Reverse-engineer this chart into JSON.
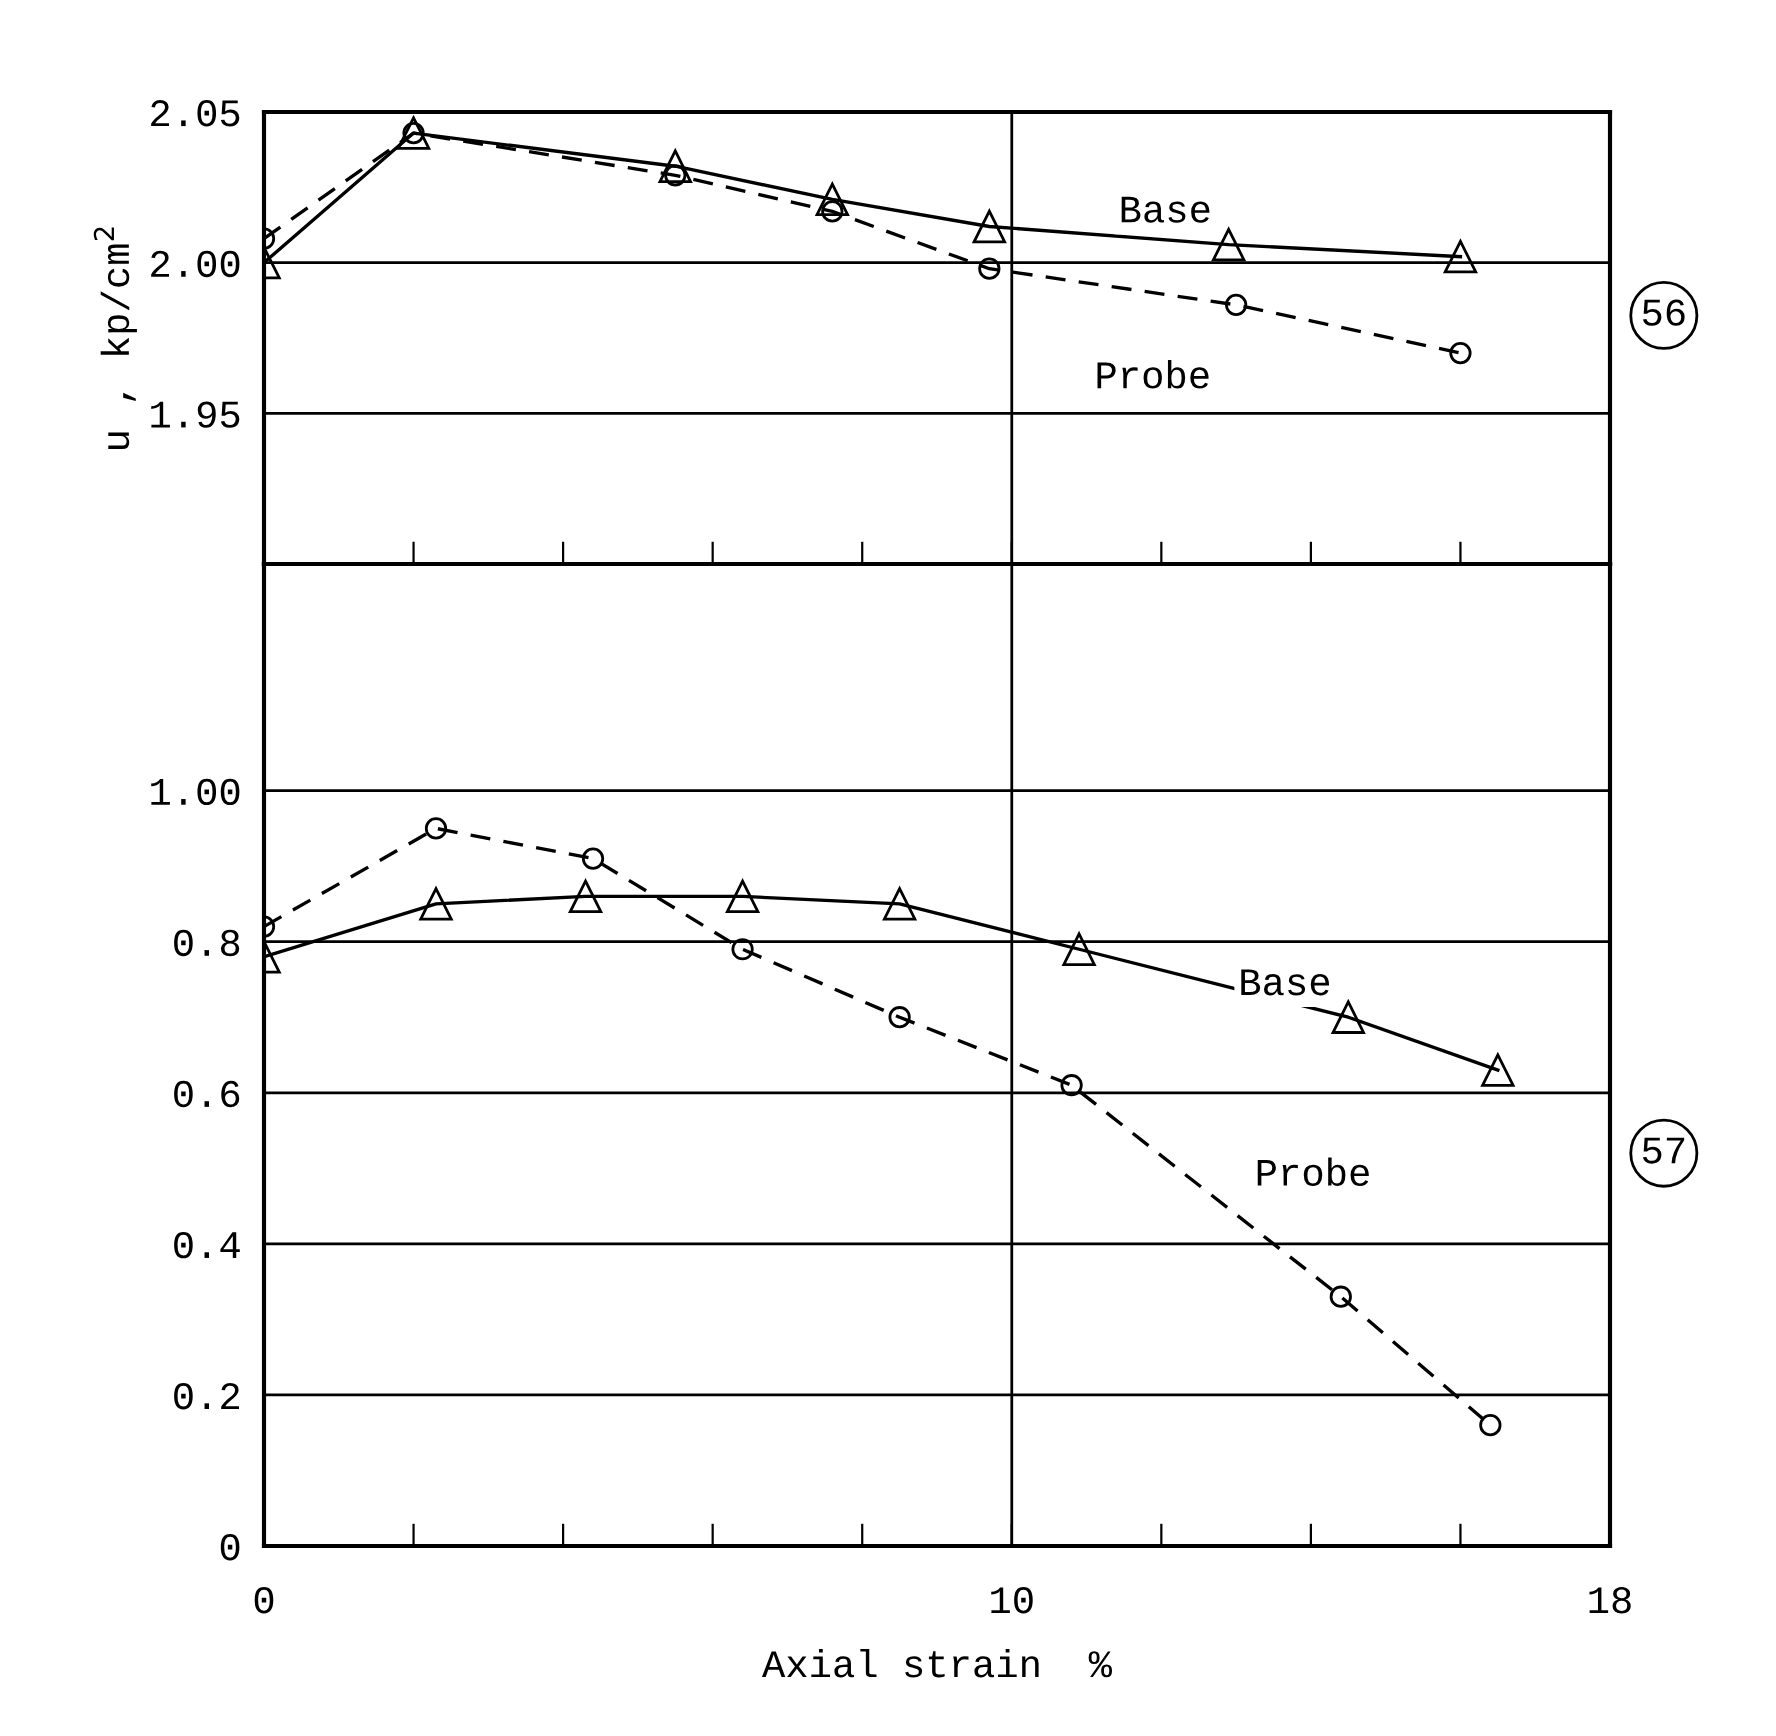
{
  "chart_data": [
    {
      "type": "line",
      "ylabel": "u , kp/cm$^{2}$",
      "xlim": [
        0,
        18
      ],
      "ylim": [
        1.9,
        2.05
      ],
      "xticks": [
        0,
        {
          "value": 2,
          "label": null
        },
        {
          "value": 4,
          "label": null
        },
        {
          "value": 6,
          "label": null
        },
        {
          "value": 8,
          "label": null
        },
        10,
        {
          "value": 12,
          "label": null
        },
        {
          "value": 14,
          "label": null
        },
        {
          "value": 16,
          "label": null
        },
        18
      ],
      "yticks": [
        1.95,
        {
          "value": 2.0,
          "label": "2.00"
        },
        2.05
      ],
      "tick_labels": "y",
      "grid": "y",
      "legend": false,
      "ref_lines": [
        {
          "axis": "x",
          "value": 10,
          "color": "#000000"
        }
      ],
      "annotations": [
        "56"
      ],
      "series": [
        {
          "name": "Base",
          "color": "#000000",
          "marker": "triangle",
          "line_style": "solid",
          "x": [
            0,
            2.0,
            5.5,
            7.6,
            9.7,
            12.9,
            16.0
          ],
          "values": [
            2.0,
            2.043,
            2.032,
            2.021,
            2.012,
            2.006,
            2.002
          ]
        },
        {
          "name": "Probe",
          "color": "#000000",
          "marker": "circle",
          "line_style": "dashed",
          "x": [
            0,
            2.0,
            5.5,
            7.6,
            9.7,
            13.0,
            16.0
          ],
          "values": [
            2.008,
            2.043,
            2.029,
            2.017,
            1.998,
            1.986,
            1.97
          ]
        }
      ]
    },
    {
      "type": "line",
      "xlabel": "Axial strain  %",
      "xlim": [
        0,
        18
      ],
      "ylim": [
        0,
        1.3
      ],
      "xticks": [
        0,
        {
          "value": 2,
          "label": null
        },
        {
          "value": 4,
          "label": null
        },
        {
          "value": 6,
          "label": null
        },
        {
          "value": 8,
          "label": null
        },
        10,
        {
          "value": 12,
          "label": null
        },
        {
          "value": 14,
          "label": null
        },
        {
          "value": 16,
          "label": null
        },
        18
      ],
      "yticks": [
        0,
        0.2,
        0.4,
        0.6,
        0.8,
        {
          "value": 1.0,
          "label": "1.00"
        }
      ],
      "grid": "y",
      "legend": false,
      "ref_lines": [
        {
          "axis": "x",
          "value": 10,
          "color": "#000000"
        }
      ],
      "annotations": [
        "57"
      ],
      "series": [
        {
          "name": "Base",
          "color": "#000000",
          "marker": "triangle",
          "line_style": "solid",
          "x": [
            0,
            2.3,
            4.3,
            6.4,
            8.5,
            10.9,
            14.5,
            16.5
          ],
          "values": [
            0.78,
            0.85,
            0.86,
            0.86,
            0.85,
            0.79,
            0.7,
            0.63
          ]
        },
        {
          "name": "Probe",
          "color": "#000000",
          "marker": "circle",
          "line_style": "dashed",
          "x": [
            0,
            2.3,
            4.4,
            6.4,
            8.5,
            10.8,
            14.4,
            16.4
          ],
          "values": [
            0.82,
            0.95,
            0.91,
            0.79,
            0.7,
            0.61,
            0.33,
            0.16
          ]
        }
      ]
    }
  ]
}
